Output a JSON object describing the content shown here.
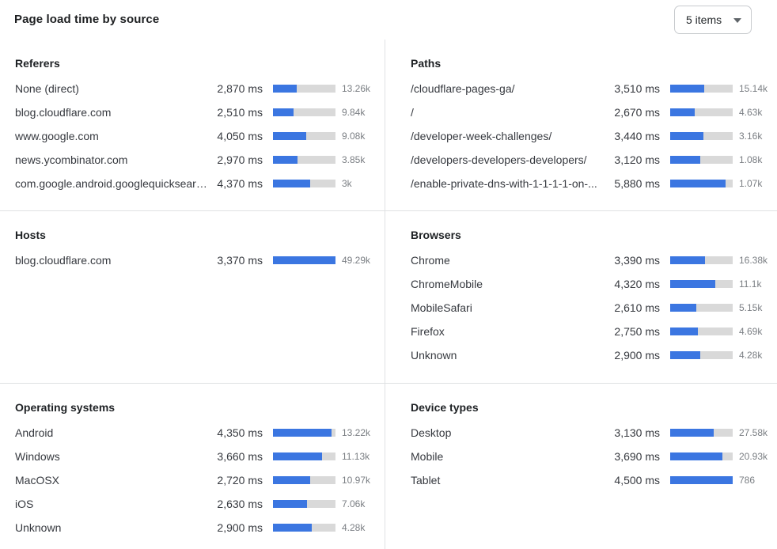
{
  "header": {
    "title": "Page load time by source",
    "items_dropdown": {
      "value": "5 items"
    }
  },
  "colors": {
    "accent": "#3b76e1",
    "bar_track": "#d9d9d9",
    "divider": "#dfe1e3"
  },
  "chart_data": [
    {
      "type": "bar",
      "orientation": "horizontal",
      "title": "Referers",
      "unit": "ms",
      "categories": [
        "None (direct)",
        "blog.cloudflare.com",
        "www.google.com",
        "news.ycombinator.com",
        "com.google.android.googlequicksearc..."
      ],
      "values_ms": [
        2870,
        2510,
        4050,
        2970,
        4370
      ],
      "counts": [
        "13.26k",
        "9.84k",
        "9.08k",
        "3.85k",
        "3k"
      ],
      "bar_percents": [
        38,
        33,
        53,
        39,
        59
      ]
    },
    {
      "type": "bar",
      "orientation": "horizontal",
      "title": "Paths",
      "unit": "ms",
      "categories": [
        "/cloudflare-pages-ga/",
        "/",
        "/developer-week-challenges/",
        "/developers-developers-developers/",
        "/enable-private-dns-with-1-1-1-1-on-..."
      ],
      "values_ms": [
        3510,
        2670,
        3440,
        3120,
        5880
      ],
      "counts": [
        "15.14k",
        "4.63k",
        "3.16k",
        "1.08k",
        "1.07k"
      ],
      "bar_percents": [
        54,
        39,
        53,
        48,
        89
      ]
    },
    {
      "type": "bar",
      "orientation": "horizontal",
      "title": "Hosts",
      "unit": "ms",
      "categories": [
        "blog.cloudflare.com"
      ],
      "values_ms": [
        3370
      ],
      "counts": [
        "49.29k"
      ],
      "bar_percents": [
        100
      ]
    },
    {
      "type": "bar",
      "orientation": "horizontal",
      "title": "Browsers",
      "unit": "ms",
      "categories": [
        "Chrome",
        "ChromeMobile",
        "MobileSafari",
        "Firefox",
        "Unknown"
      ],
      "values_ms": [
        3390,
        4320,
        2610,
        2750,
        2900
      ],
      "counts": [
        "16.38k",
        "11.1k",
        "5.15k",
        "4.69k",
        "4.28k"
      ],
      "bar_percents": [
        56,
        72,
        42,
        44,
        48
      ]
    },
    {
      "type": "bar",
      "orientation": "horizontal",
      "title": "Operating systems",
      "unit": "ms",
      "categories": [
        "Android",
        "Windows",
        "MacOSX",
        "iOS",
        "Unknown"
      ],
      "values_ms": [
        4350,
        3660,
        2720,
        2630,
        2900
      ],
      "counts": [
        "13.22k",
        "11.13k",
        "10.97k",
        "7.06k",
        "4.28k"
      ],
      "bar_percents": [
        94,
        78,
        59,
        55,
        62
      ]
    },
    {
      "type": "bar",
      "orientation": "horizontal",
      "title": "Device types",
      "unit": "ms",
      "categories": [
        "Desktop",
        "Mobile",
        "Tablet"
      ],
      "values_ms": [
        3130,
        3690,
        4500
      ],
      "counts": [
        "27.58k",
        "20.93k",
        "786"
      ],
      "bar_percents": [
        69,
        83,
        100
      ]
    }
  ]
}
